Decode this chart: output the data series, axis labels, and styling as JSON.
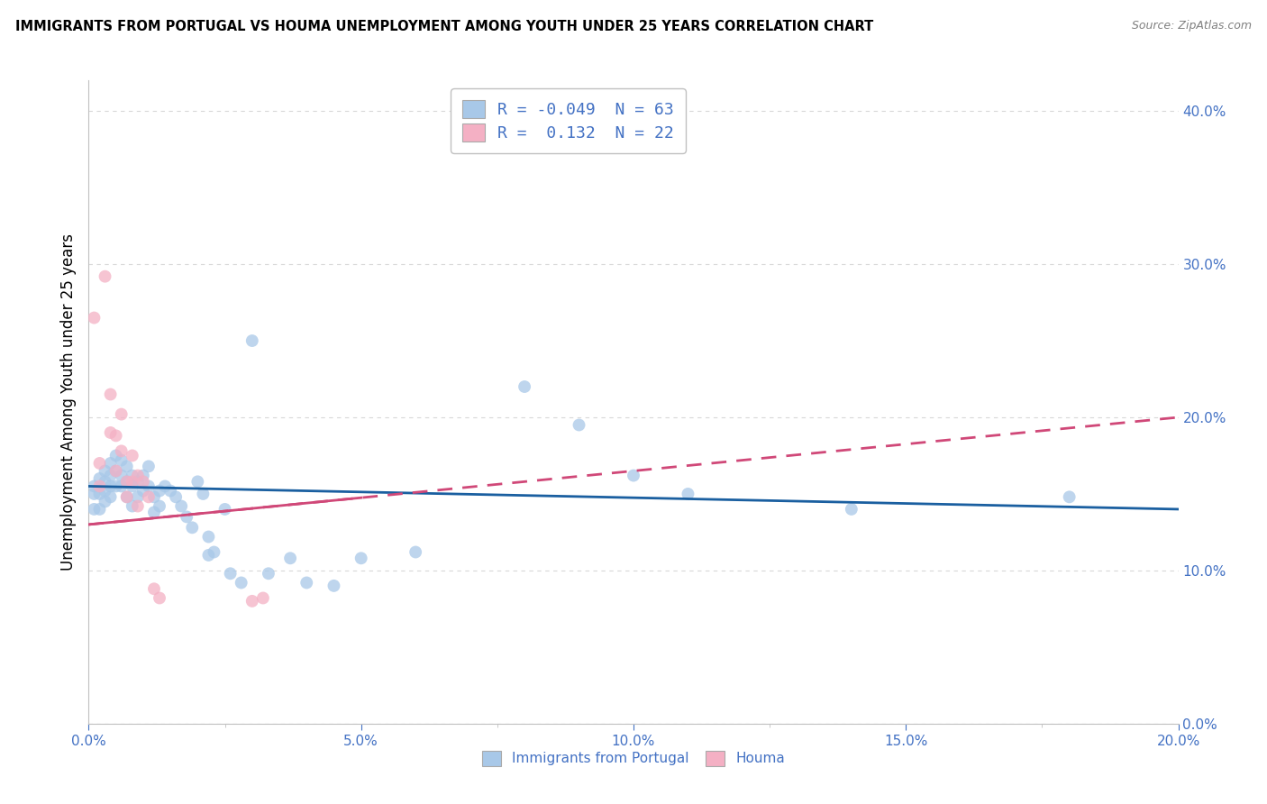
{
  "title": "IMMIGRANTS FROM PORTUGAL VS HOUMA UNEMPLOYMENT AMONG YOUTH UNDER 25 YEARS CORRELATION CHART",
  "source": "Source: ZipAtlas.com",
  "ylabel": "Unemployment Among Youth under 25 years",
  "r_blue": "-0.049",
  "n_blue": "63",
  "r_pink": "0.132",
  "n_pink": "22",
  "blue_fill": "#a8c8e8",
  "pink_fill": "#f4b0c4",
  "blue_line": "#1a5fa0",
  "pink_line": "#d04878",
  "text_color": "#4472c4",
  "grid_color": "#d8d8d8",
  "xlim": [
    0.0,
    0.2
  ],
  "ylim": [
    0.0,
    0.42
  ],
  "blue_x": [
    0.001,
    0.001,
    0.001,
    0.002,
    0.002,
    0.002,
    0.003,
    0.003,
    0.003,
    0.003,
    0.004,
    0.004,
    0.004,
    0.004,
    0.005,
    0.005,
    0.005,
    0.006,
    0.006,
    0.006,
    0.007,
    0.007,
    0.007,
    0.008,
    0.008,
    0.008,
    0.009,
    0.009,
    0.01,
    0.01,
    0.011,
    0.011,
    0.012,
    0.012,
    0.013,
    0.013,
    0.014,
    0.015,
    0.016,
    0.017,
    0.018,
    0.019,
    0.02,
    0.021,
    0.022,
    0.022,
    0.023,
    0.025,
    0.026,
    0.028,
    0.03,
    0.033,
    0.037,
    0.04,
    0.045,
    0.05,
    0.06,
    0.08,
    0.09,
    0.1,
    0.11,
    0.14,
    0.18
  ],
  "blue_y": [
    0.155,
    0.15,
    0.14,
    0.16,
    0.15,
    0.14,
    0.165,
    0.158,
    0.152,
    0.145,
    0.17,
    0.162,
    0.155,
    0.148,
    0.175,
    0.165,
    0.155,
    0.172,
    0.162,
    0.155,
    0.168,
    0.158,
    0.148,
    0.162,
    0.155,
    0.142,
    0.158,
    0.148,
    0.162,
    0.152,
    0.168,
    0.155,
    0.148,
    0.138,
    0.152,
    0.142,
    0.155,
    0.152,
    0.148,
    0.142,
    0.135,
    0.128,
    0.158,
    0.15,
    0.11,
    0.122,
    0.112,
    0.14,
    0.098,
    0.092,
    0.25,
    0.098,
    0.108,
    0.092,
    0.09,
    0.108,
    0.112,
    0.22,
    0.195,
    0.162,
    0.15,
    0.14,
    0.148
  ],
  "pink_x": [
    0.001,
    0.002,
    0.002,
    0.003,
    0.004,
    0.004,
    0.005,
    0.005,
    0.006,
    0.006,
    0.007,
    0.007,
    0.008,
    0.008,
    0.009,
    0.009,
    0.01,
    0.011,
    0.012,
    0.013,
    0.03,
    0.032
  ],
  "pink_y": [
    0.265,
    0.155,
    0.17,
    0.292,
    0.215,
    0.19,
    0.188,
    0.165,
    0.202,
    0.178,
    0.158,
    0.148,
    0.175,
    0.158,
    0.162,
    0.142,
    0.158,
    0.148,
    0.088,
    0.082,
    0.08,
    0.082
  ]
}
